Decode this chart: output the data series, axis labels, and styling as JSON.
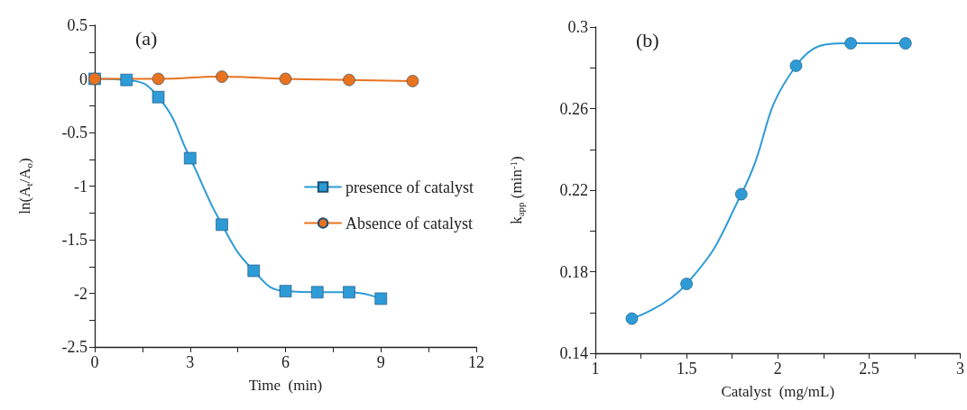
{
  "chart_data": [
    {
      "type": "line",
      "title": "(a)",
      "xlabel": "Time  (min)",
      "ylabel": "ln(A$_{t}$/A$_{o}$)",
      "xlim": [
        0,
        12
      ],
      "xticks": [
        0,
        {
          "value": 1.5,
          "label": null
        },
        3,
        {
          "value": 4.5,
          "label": null
        },
        6,
        {
          "value": 7.5,
          "label": null
        },
        9,
        {
          "value": 10.5,
          "label": null
        },
        12
      ],
      "ylim": [
        -2.5,
        0.5
      ],
      "yticks": [
        -2.5,
        {
          "value": -2.25,
          "label": null
        },
        -2,
        {
          "value": -1.75,
          "label": null
        },
        -1.5,
        {
          "value": -1.25,
          "label": null
        },
        -1,
        {
          "value": -0.75,
          "label": null
        },
        -0.5,
        {
          "value": -0.25,
          "label": null
        },
        0,
        {
          "value": 0.25,
          "label": null
        },
        0.5
      ],
      "grid": false,
      "legend": "right",
      "line_style": "solid",
      "series": [
        {
          "name": "presence of catalyst",
          "color": "#2e9bd6",
          "marker": "square",
          "x": [
            0,
            1,
            2,
            3,
            4,
            5,
            6,
            7,
            8,
            9
          ],
          "values": [
            0,
            -0.01,
            -0.17,
            -0.74,
            -1.36,
            -1.79,
            -1.98,
            -1.99,
            -1.99,
            -2.05
          ]
        },
        {
          "name": "Absence of catalyst",
          "color": "#e8731f",
          "marker": "circle",
          "x": [
            0,
            2,
            4,
            6,
            8,
            10
          ],
          "values": [
            0,
            0,
            0.02,
            0,
            -0.01,
            -0.02
          ]
        }
      ]
    },
    {
      "type": "line",
      "title": "(b)",
      "xlabel": "Catalyst  (mg/mL)",
      "ylabel": "k$_{app}$ (min$^{-1}$)",
      "xlim": [
        1,
        3
      ],
      "xticks": [
        1,
        {
          "value": 1.25,
          "label": null
        },
        1.5,
        {
          "value": 1.75,
          "label": null
        },
        2,
        {
          "value": 2.25,
          "label": null
        },
        2.5,
        {
          "value": 2.75,
          "label": null
        },
        3
      ],
      "ylim": [
        0.14,
        0.3
      ],
      "yticks": [
        0.14,
        {
          "value": 0.16,
          "label": null
        },
        0.18,
        {
          "value": 0.2,
          "label": null
        },
        0.22,
        {
          "value": 0.24,
          "label": null
        },
        0.26,
        {
          "value": 0.28,
          "label": null
        },
        0.3
      ],
      "grid": false,
      "legend": false,
      "line_style": "solid",
      "series": [
        {
          "color": "#2e9bd6",
          "marker": "circle",
          "x": [
            1.2,
            1.5,
            1.8,
            2.1,
            2.4,
            2.7
          ],
          "values": [
            0.157,
            0.174,
            0.218,
            0.281,
            0.292,
            0.292
          ]
        }
      ]
    }
  ]
}
